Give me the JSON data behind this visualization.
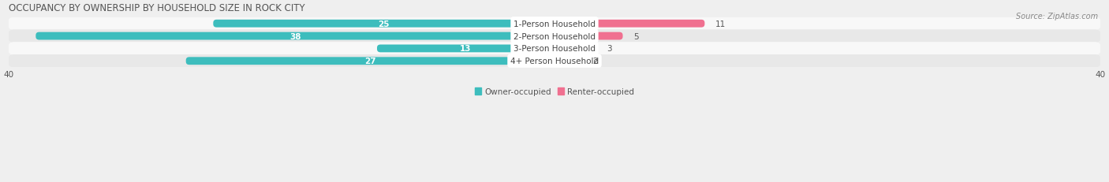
{
  "title": "OCCUPANCY BY OWNERSHIP BY HOUSEHOLD SIZE IN ROCK CITY",
  "source": "Source: ZipAtlas.com",
  "categories": [
    "1-Person Household",
    "2-Person Household",
    "3-Person Household",
    "4+ Person Household"
  ],
  "owner_values": [
    25,
    38,
    13,
    27
  ],
  "renter_values": [
    11,
    5,
    3,
    2
  ],
  "owner_color": "#3DBDBD",
  "renter_color": "#F07090",
  "owner_label": "Owner-occupied",
  "renter_label": "Renter-occupied",
  "axis_max": 40,
  "bar_height": 0.62,
  "background_color": "#efefef",
  "row_bg_light": "#f8f8f8",
  "row_bg_dark": "#e8e8e8",
  "title_fontsize": 8.5,
  "value_fontsize": 7.5,
  "cat_fontsize": 7.5,
  "legend_fontsize": 7.5,
  "source_fontsize": 7.0
}
